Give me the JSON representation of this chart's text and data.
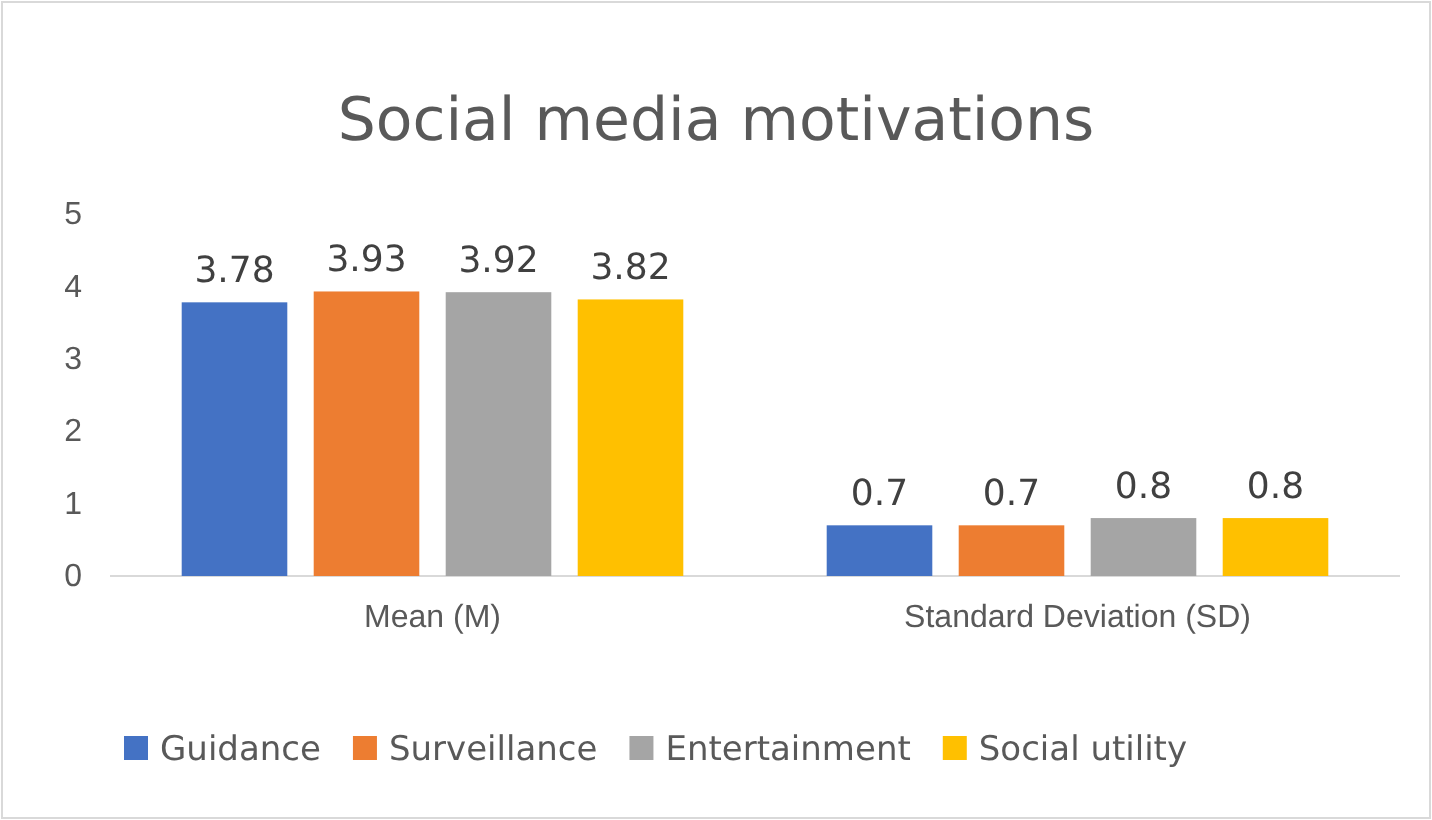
{
  "chart_data": {
    "type": "bar",
    "title": "Social media motivations",
    "categories": [
      "Mean (M)",
      "Standard Deviation (SD)"
    ],
    "series": [
      {
        "name": "Guidance",
        "color": "#4472c4",
        "values": [
          3.78,
          0.7
        ]
      },
      {
        "name": "Surveillance",
        "color": "#ed7d31",
        "values": [
          3.93,
          0.7
        ]
      },
      {
        "name": "Entertainment",
        "color": "#a5a5a5",
        "values": [
          3.92,
          0.8
        ]
      },
      {
        "name": "Social utility",
        "color": "#ffc000",
        "values": [
          3.82,
          0.8
        ]
      }
    ],
    "ylim": [
      0,
      5
    ],
    "yticks": [
      0,
      1,
      2,
      3,
      4,
      5
    ],
    "grid": false,
    "legend": "bottom",
    "data_labels": true
  }
}
